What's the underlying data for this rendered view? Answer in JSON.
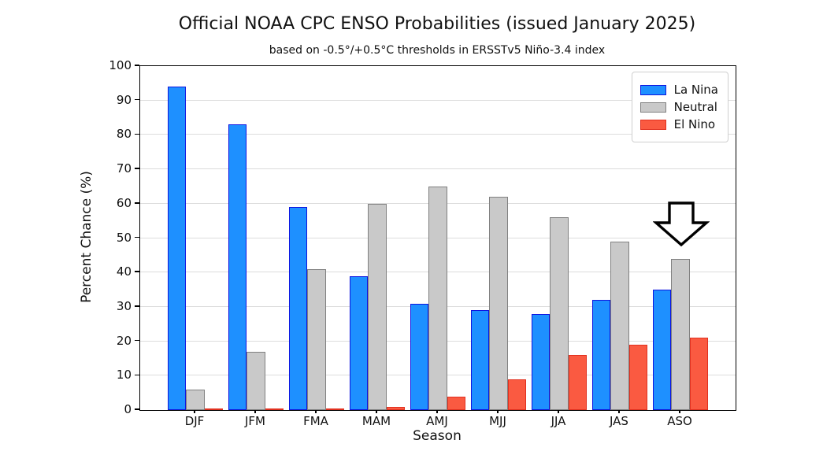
{
  "chart_data": {
    "type": "bar",
    "title": "Official NOAA CPC ENSO Probabilities (issued January 2025)",
    "subtitle": "based on -0.5°/+0.5°C thresholds in ERSSTv5 Niño-3.4 index",
    "xlabel": "Season",
    "ylabel": "Percent Chance (%)",
    "ylim": [
      0,
      100
    ],
    "yticks": [
      0,
      10,
      20,
      30,
      40,
      50,
      60,
      70,
      80,
      90,
      100
    ],
    "grid": true,
    "categories": [
      "DJF",
      "JFM",
      "FMA",
      "MAM",
      "AMJ",
      "MJJ",
      "JJA",
      "JAS",
      "ASO"
    ],
    "series": [
      {
        "name": "La Nina",
        "color": "#1e90ff",
        "edge_color": "#0f14e0",
        "values": [
          94,
          83,
          59,
          39,
          31,
          29,
          28,
          32,
          35
        ]
      },
      {
        "name": "Neutral",
        "color": "#c9c9c9",
        "edge_color": "#808080",
        "values": [
          6,
          17,
          41,
          60,
          65,
          62,
          56,
          49,
          44
        ]
      },
      {
        "name": "El Nino",
        "color": "#fa5a41",
        "edge_color": "#e1301f",
        "values": [
          0,
          0,
          0,
          1,
          4,
          9,
          16,
          19,
          21
        ]
      }
    ],
    "legend": {
      "position": "upper right",
      "labels": [
        "La Nina",
        "Neutral",
        "El Nino"
      ]
    },
    "annotation": {
      "type": "down-arrow",
      "description": "hollow black-outlined arrow pointing down at the ASO Neutral bar",
      "target_category": "ASO"
    }
  }
}
